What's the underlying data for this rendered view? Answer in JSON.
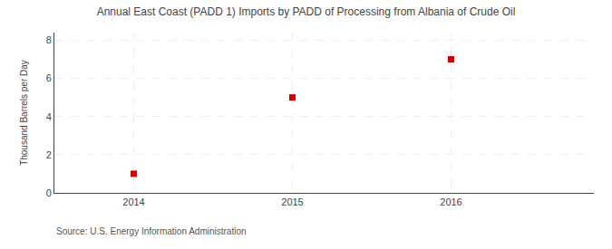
{
  "chart_data": {
    "type": "scatter",
    "title": "Annual East Coast (PADD 1) Imports by PADD of Processing from Albania of Crude Oil",
    "ylabel": "Thousand Barrels per Day",
    "source": "Source: U.S. Energy Information Administration",
    "x": [
      2014,
      2015,
      2016
    ],
    "values": [
      1,
      5,
      7
    ],
    "color": "#cc0000",
    "marker": "square",
    "xlim": [
      2013.5,
      2016.9
    ],
    "xticks": [
      2014,
      2015,
      2016
    ],
    "ylim": [
      0,
      8.4
    ],
    "yticks": [
      0,
      2,
      4,
      6,
      8
    ],
    "grid": true
  }
}
